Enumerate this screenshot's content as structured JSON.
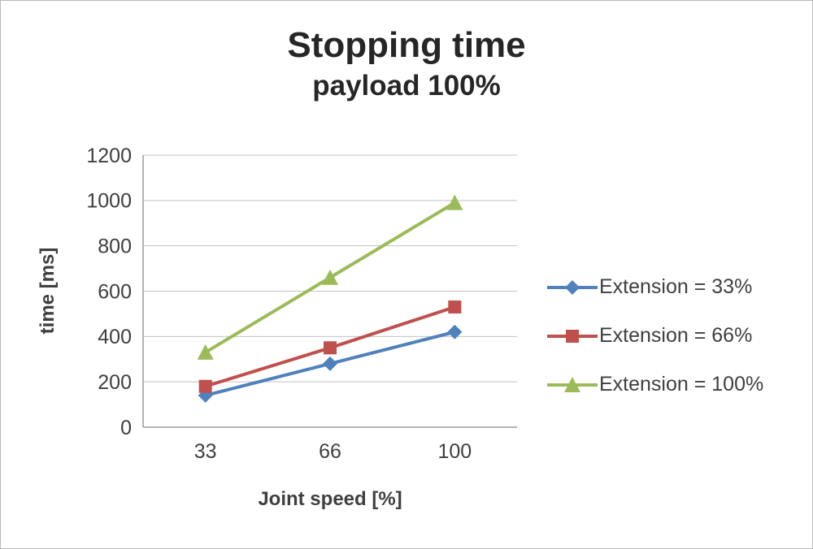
{
  "chart_data": {
    "type": "line",
    "title": "Stopping time",
    "subtitle": "payload 100%",
    "xlabel": "Joint speed [%]",
    "ylabel": "time [ms]",
    "categories": [
      "33",
      "66",
      "100"
    ],
    "series": [
      {
        "name": "Extension = 33%",
        "color": "#4F81BD",
        "marker": "diamond",
        "values": [
          140,
          280,
          420
        ]
      },
      {
        "name": "Extension = 66%",
        "color": "#C0504D",
        "marker": "square",
        "values": [
          180,
          350,
          530
        ]
      },
      {
        "name": "Extension = 100%",
        "color": "#9BBB59",
        "marker": "triangle",
        "values": [
          330,
          660,
          990
        ]
      }
    ],
    "ylim": [
      0,
      1200
    ],
    "ytick_step": 200,
    "grid": true,
    "legend_position": "right"
  },
  "style": {
    "grid_color": "#C3C3C3",
    "axis_color": "#9B9B9B",
    "tick_color": "#3F3F3F",
    "title_color": "#262626"
  }
}
